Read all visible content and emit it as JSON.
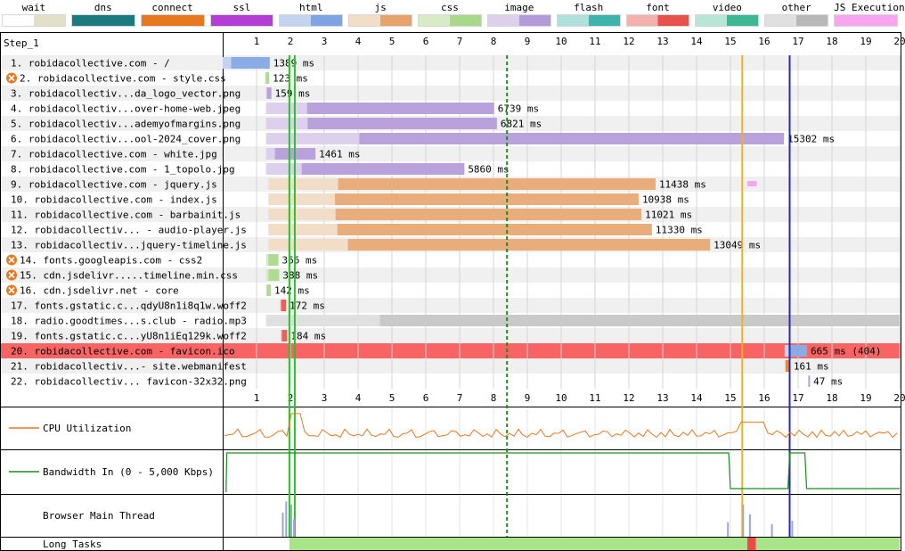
{
  "legend": [
    {
      "label": "wait",
      "colors": [
        "#fefefe",
        "#e2e0c8"
      ]
    },
    {
      "label": "dns",
      "colors": [
        "#1a7a7e",
        "#1a7a7e"
      ]
    },
    {
      "label": "connect",
      "colors": [
        "#e8781e",
        "#e8781e"
      ]
    },
    {
      "label": "ssl",
      "colors": [
        "#b43dd6",
        "#b43dd6"
      ]
    },
    {
      "label": "html",
      "colors": [
        "#c5d4ee",
        "#7fa4e4"
      ]
    },
    {
      "label": "js",
      "colors": [
        "#f1ddc8",
        "#e6a46c"
      ]
    },
    {
      "label": "css",
      "colors": [
        "#d7ecc6",
        "#a8d98a"
      ]
    },
    {
      "label": "image",
      "colors": [
        "#ddd0ec",
        "#b39ad9"
      ]
    },
    {
      "label": "flash",
      "colors": [
        "#aee0dc",
        "#3cb4ac"
      ]
    },
    {
      "label": "font",
      "colors": [
        "#f4b0ac",
        "#e8524c"
      ]
    },
    {
      "label": "video",
      "colors": [
        "#b8e6d6",
        "#3eb894"
      ]
    },
    {
      "label": "other",
      "colors": [
        "#e0e0e0",
        "#b8b8b8"
      ]
    },
    {
      "label": "JS Execution",
      "colors": [
        "#f8a4f0",
        "#f8a4f0"
      ]
    }
  ],
  "step_label": "Step_1",
  "axis": {
    "min": 0,
    "max": 20,
    "ticks": [
      "1",
      "2",
      "3",
      "4",
      "5",
      "6",
      "7",
      "8",
      "9",
      "10",
      "11",
      "12",
      "13",
      "14",
      "15",
      "16",
      "17",
      "18",
      "19",
      "20"
    ]
  },
  "markers": [
    {
      "time": 1.97,
      "color": "#28c428",
      "dashed": false
    },
    {
      "time": 2.13,
      "color": "#28c428",
      "dashed": false
    },
    {
      "time": 8.4,
      "color": "#1e8c1e",
      "dashed": true
    },
    {
      "time": 15.35,
      "color": "#f0b020",
      "dashed": false
    },
    {
      "time": 16.75,
      "color": "#2828b0",
      "dashed": false
    }
  ],
  "requests": [
    {
      "label": "1. robidacollective.com - /",
      "warn": false,
      "start": 0.0,
      "end": 1.389,
      "type": "html",
      "size": "1389 ms",
      "color_light": "#c5d4ee",
      "color_dark": "#7fa4e4",
      "highlight": false
    },
    {
      "label": "2. robidacollective.com - style.css",
      "warn": true,
      "start": 1.25,
      "end": 1.373,
      "type": "css",
      "size": "123 ms",
      "color_light": "#d7ecc6",
      "color_dark": "#a8d98a",
      "highlight": false
    },
    {
      "label": "3. robidacollectiv...da_logo_vector.png",
      "warn": false,
      "start": 1.28,
      "end": 1.439,
      "type": "image",
      "size": "159 ms",
      "color_light": "#ddd0ec",
      "color_dark": "#b39ad9",
      "highlight": false
    },
    {
      "label": "4. robidacollectiv...over-home-web.jpeg",
      "warn": false,
      "start": 1.28,
      "end": 8.019,
      "type": "image",
      "size": "6739 ms",
      "color_light": "#ddd0ec",
      "color_dark": "#b39ad9",
      "highlight": false
    },
    {
      "label": "5. robidacollectiv...ademyofmargins.png",
      "warn": false,
      "start": 1.28,
      "end": 8.101,
      "type": "image",
      "size": "6821 ms",
      "color_light": "#ddd0ec",
      "color_dark": "#b39ad9",
      "highlight": false
    },
    {
      "label": "6. robidacollectiv...ool-2024_cover.png",
      "warn": false,
      "start": 1.28,
      "end": 16.582,
      "type": "image",
      "size": "15302 ms",
      "color_light": "#ddd0ec",
      "color_dark": "#b39ad9",
      "highlight": false
    },
    {
      "label": "7. robidacollective.com - white.jpg",
      "warn": false,
      "start": 1.28,
      "end": 2.741,
      "type": "image",
      "size": "1461 ms",
      "color_light": "#ddd0ec",
      "color_dark": "#b39ad9",
      "highlight": false
    },
    {
      "label": "8. robidacollective.com - 1_topolo.jpg",
      "warn": false,
      "start": 1.28,
      "end": 7.14,
      "type": "image",
      "size": "5860 ms",
      "color_light": "#ddd0ec",
      "color_dark": "#b39ad9",
      "highlight": false
    },
    {
      "label": "9. robidacollective.com - jquery.js",
      "warn": false,
      "start": 1.35,
      "end": 12.788,
      "type": "js",
      "size": "11438 ms",
      "color_light": "#f1ddc8",
      "color_dark": "#e6a46c",
      "highlight": false
    },
    {
      "label": "10. robidacollective.com - index.js",
      "warn": false,
      "start": 1.35,
      "end": 12.288,
      "type": "js",
      "size": "10938 ms",
      "color_light": "#f1ddc8",
      "color_dark": "#e6a46c",
      "highlight": false
    },
    {
      "label": "11. robidacollective.com - barbainit.js",
      "warn": false,
      "start": 1.35,
      "end": 12.371,
      "type": "js",
      "size": "11021 ms",
      "color_light": "#f1ddc8",
      "color_dark": "#e6a46c",
      "highlight": false
    },
    {
      "label": "12. robidacollectiv... - audio-player.js",
      "warn": false,
      "start": 1.35,
      "end": 12.68,
      "type": "js",
      "size": "11330 ms",
      "color_light": "#f1ddc8",
      "color_dark": "#e6a46c",
      "highlight": false
    },
    {
      "label": "13. robidacollectiv...jquery-timeline.js",
      "warn": false,
      "start": 1.35,
      "end": 14.399,
      "type": "js",
      "size": "13049 ms",
      "color_light": "#f1ddc8",
      "color_dark": "#e6a46c",
      "highlight": false
    },
    {
      "label": "14. fonts.googleapis.com - css2",
      "warn": true,
      "start": 1.28,
      "end": 1.646,
      "type": "css",
      "size": "366 ms",
      "color_light": "#d7ecc6",
      "color_dark": "#a8d98a",
      "highlight": false
    },
    {
      "label": "15. cdn.jsdelivr.....timeline.min.css",
      "warn": true,
      "start": 1.28,
      "end": 1.668,
      "type": "css",
      "size": "388 ms",
      "color_light": "#d7ecc6",
      "color_dark": "#a8d98a",
      "highlight": false
    },
    {
      "label": "16. cdn.jsdelivr.net - core",
      "warn": true,
      "start": 1.28,
      "end": 1.422,
      "type": "css",
      "size": "142 ms",
      "color_light": "#d7ecc6",
      "color_dark": "#a8d98a",
      "highlight": false
    },
    {
      "label": "17. fonts.gstatic.c...qdyU8n1i8q1w.woff2",
      "warn": false,
      "start": 1.7,
      "end": 1.872,
      "type": "font",
      "size": "172 ms",
      "color_light": "#f4b0ac",
      "color_dark": "#e8524c",
      "highlight": false
    },
    {
      "label": "18. radio.goodtimes...s.club - radio.mp3",
      "warn": false,
      "start": 1.28,
      "end": 20.0,
      "type": "other",
      "size": "",
      "color_light": "#e0e0e0",
      "color_dark": "#c4c4c4",
      "highlight": false
    },
    {
      "label": "19. fonts.gstatic.c...yU8n1iEq129k.woff2",
      "warn": false,
      "start": 1.72,
      "end": 1.904,
      "type": "font",
      "size": "184 ms",
      "color_light": "#f4b0ac",
      "color_dark": "#e8524c",
      "highlight": false
    },
    {
      "label": "20. robidacollective.com - favicon.ico",
      "warn": false,
      "start": 16.6,
      "end": 17.265,
      "type": "html",
      "size": "665 ms (404)",
      "color_light": "#c5d4ee",
      "color_dark": "#7fa4e4",
      "highlight": true
    },
    {
      "label": "21. robidacollectiv...- site.webmanifest",
      "warn": false,
      "start": 16.6,
      "end": 16.761,
      "type": "other",
      "size": "161 ms",
      "color_light": "#e0e0e0",
      "color_dark": "#e8781e",
      "highlight": false
    },
    {
      "label": "22. robidacollectiv... favicon-32x32.png",
      "warn": false,
      "start": 17.3,
      "end": 17.347,
      "type": "image",
      "size": "47 ms",
      "color_light": "#ddd0ec",
      "color_dark": "#b39ad9",
      "highlight": false
    }
  ],
  "bottom_rows": [
    {
      "label": "CPU Utilization",
      "legend_color": "#e8781e"
    },
    {
      "label": "Bandwidth In (0 - 5,000 Kbps)",
      "legend_color": "#1e8c1e"
    },
    {
      "label": "Browser Main Thread",
      "legend_color": ""
    },
    {
      "label": "Long Tasks",
      "legend_color": ""
    }
  ],
  "js_execution_marks": [
    {
      "start": 15.5,
      "end": 15.78
    }
  ],
  "long_tasks": {
    "start": 1.97,
    "end": 20.0,
    "red_start": 15.5,
    "red_end": 15.75
  }
}
